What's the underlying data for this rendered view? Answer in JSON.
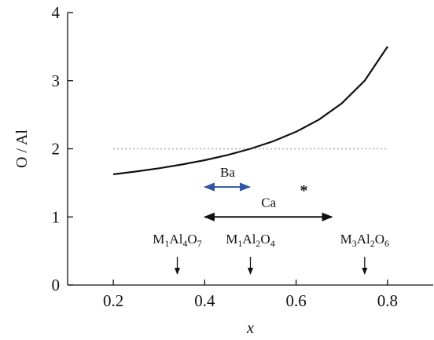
{
  "chart_data": {
    "type": "line",
    "x_label": "x",
    "y_label": "O / Al",
    "x": [
      0.2,
      0.25,
      0.3,
      0.35,
      0.4,
      0.45,
      0.5,
      0.55,
      0.6,
      0.65,
      0.7,
      0.75,
      0.8
    ],
    "series": [
      {
        "color": "#111111",
        "values": [
          1.625,
          1.667,
          1.714,
          1.769,
          1.833,
          1.909,
          2.0,
          2.111,
          2.25,
          2.429,
          2.667,
          3.0,
          3.5
        ]
      }
    ],
    "reference_line": {
      "y": 2,
      "x": [
        0.2,
        0.8
      ],
      "color": "#aaaaaa"
    },
    "xlim": [
      0.1,
      0.9
    ],
    "ylim": [
      0,
      4
    ],
    "xticks": [
      0.2,
      0.4,
      0.6,
      0.8
    ],
    "yticks": [
      0,
      1,
      2,
      3,
      4
    ],
    "ranges": [
      {
        "label": "Ba",
        "x": [
          0.4,
          0.5
        ],
        "y": 1.44,
        "color": "#2f55a4"
      },
      {
        "label": "Ca",
        "x": [
          0.4,
          0.68
        ],
        "y": 1.0,
        "color": "#111111"
      }
    ],
    "star": {
      "label": "*",
      "x": 0.617,
      "y": 1.45,
      "color": "#2f55a4"
    },
    "compositions": [
      {
        "parts": [
          "M",
          "1",
          "Al",
          "4",
          "O",
          "7"
        ],
        "x": 0.34
      },
      {
        "parts": [
          "M",
          "1",
          "Al",
          "2",
          "O",
          "4"
        ],
        "x": 0.5
      },
      {
        "parts": [
          "M",
          "3",
          "Al",
          "2",
          "O",
          "6"
        ],
        "x": 0.75
      }
    ]
  }
}
